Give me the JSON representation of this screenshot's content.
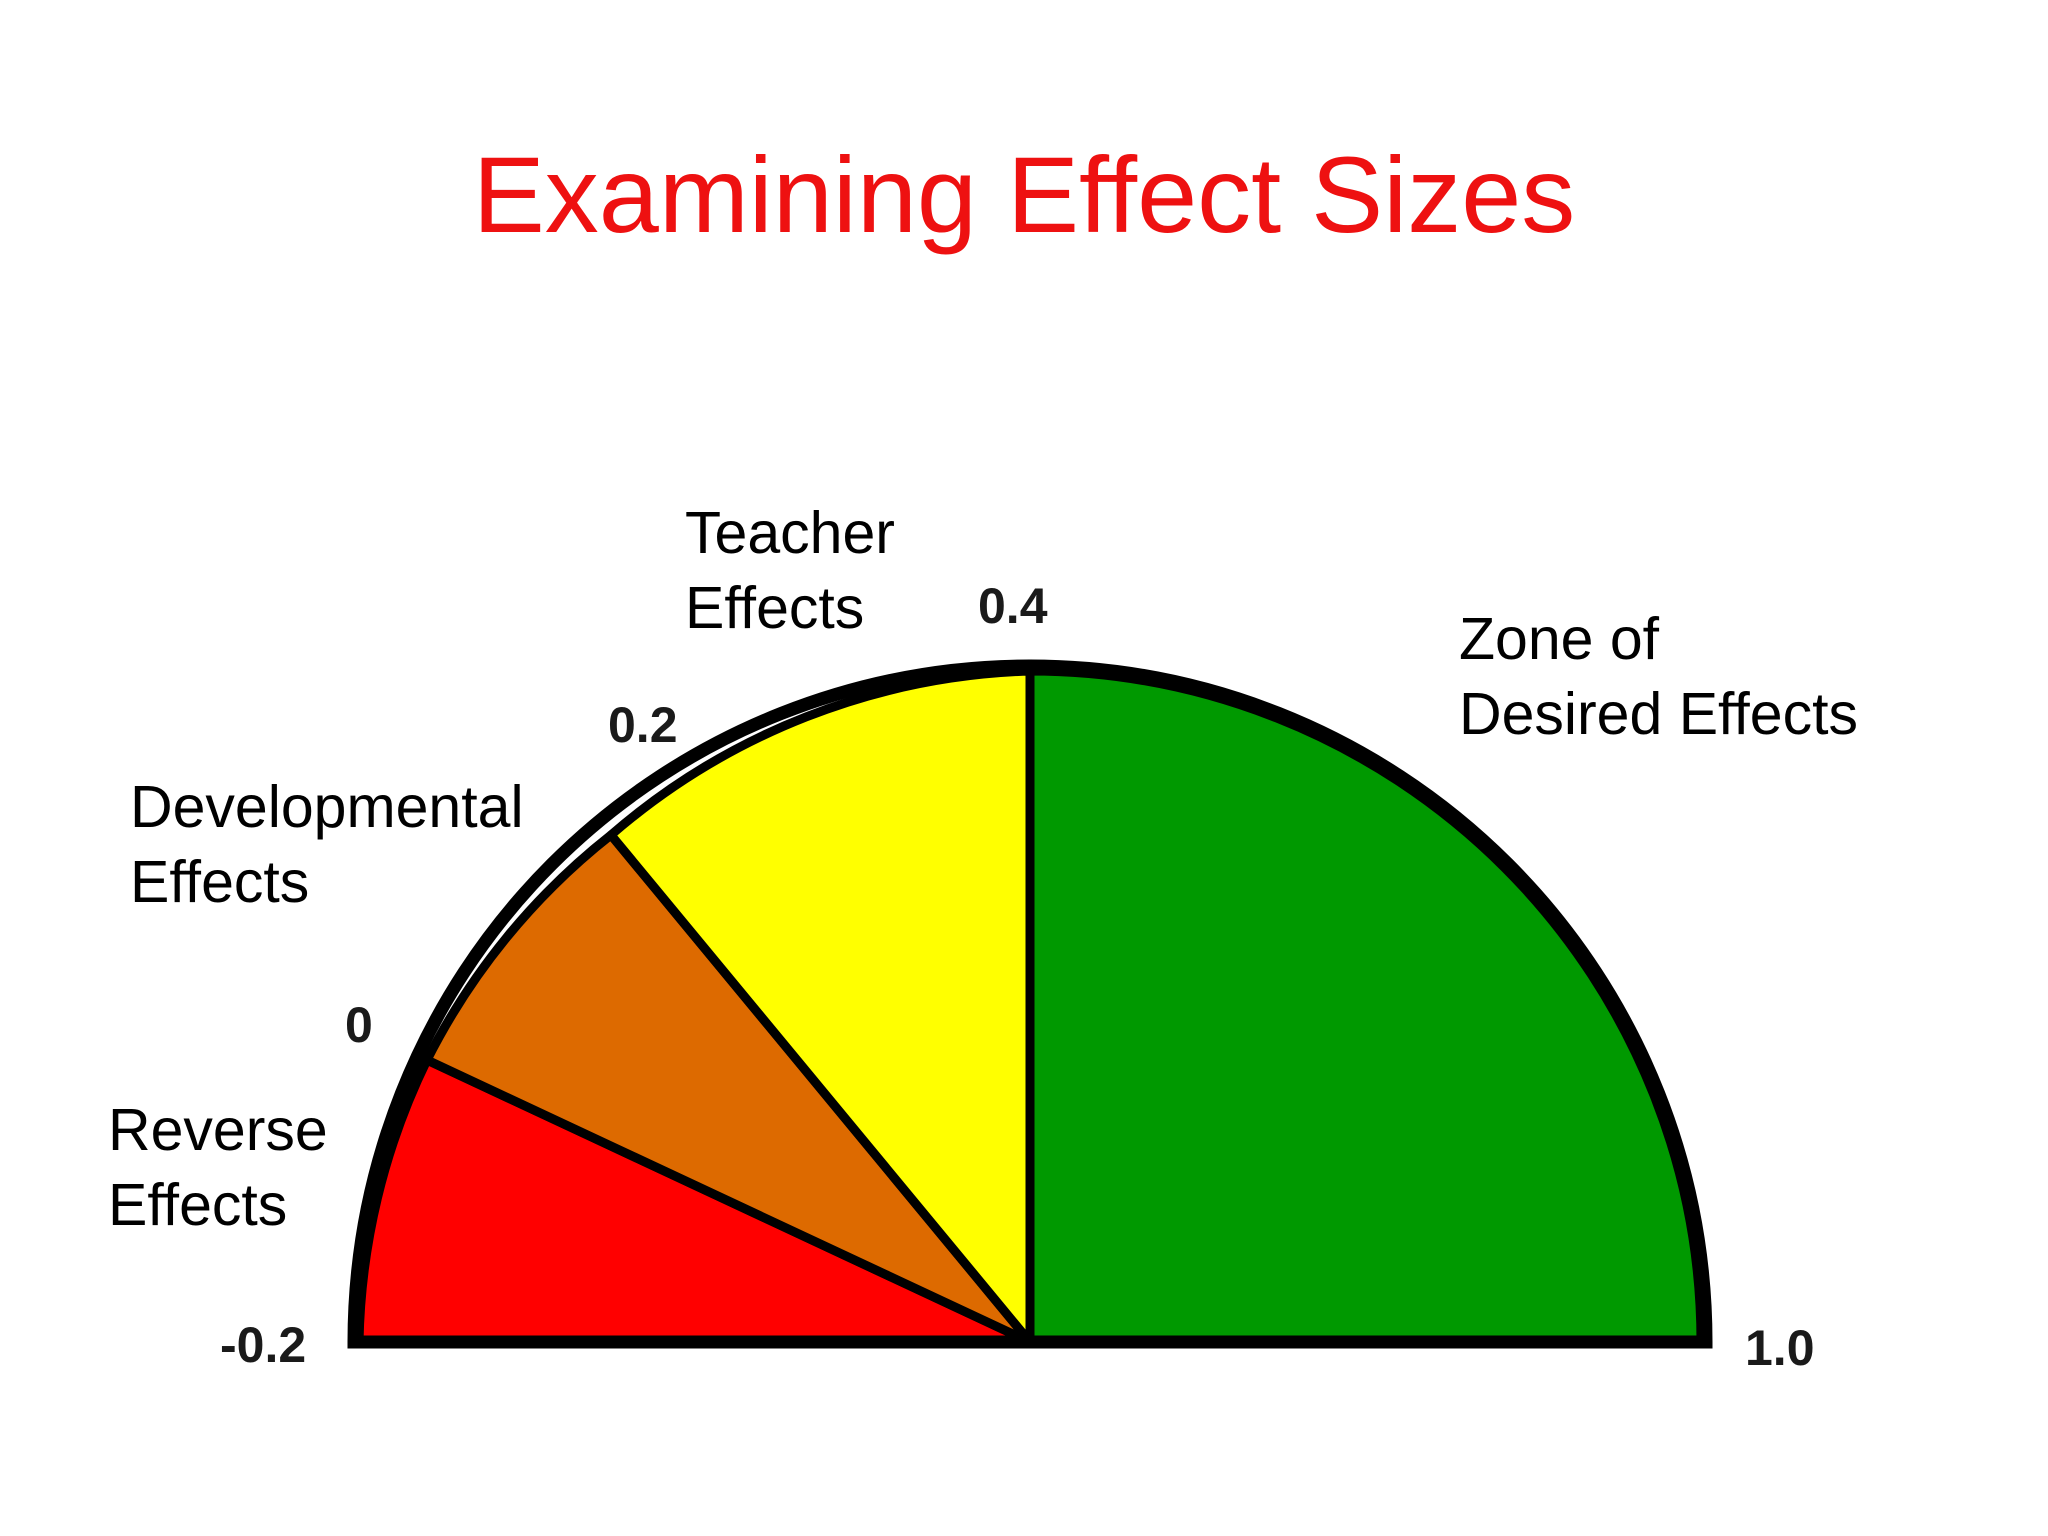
{
  "slide": {
    "title": "Examining Effect Sizes",
    "title_color": "#ee1111"
  },
  "gauge": {
    "scale_min": -0.2,
    "scale_max": 1.0,
    "outline_color": "#000000",
    "zones": [
      {
        "id": "reverse",
        "from": -0.2,
        "to": 0,
        "color": "#ff0000",
        "label_lines": [
          "Reverse",
          "Effects"
        ]
      },
      {
        "id": "developmental",
        "from": 0,
        "to": 0.2,
        "color": "#dd6a00",
        "label_lines": [
          "Developmental",
          "Effects"
        ]
      },
      {
        "id": "teacher",
        "from": 0.2,
        "to": 0.4,
        "color": "#ffff00",
        "label_lines": [
          "Teacher",
          "Effects"
        ]
      },
      {
        "id": "desired",
        "from": 0.4,
        "to": 1.0,
        "color": "#009900",
        "label_lines": [
          "Zone of",
          "Desired Effects"
        ]
      }
    ],
    "ticks": [
      {
        "id": "neg-0-2",
        "text": "-0.2"
      },
      {
        "id": "0",
        "text": "0"
      },
      {
        "id": "0-2",
        "text": "0.2"
      },
      {
        "id": "0-4",
        "text": "0.4"
      },
      {
        "id": "1-0",
        "text": "1.0"
      }
    ]
  }
}
